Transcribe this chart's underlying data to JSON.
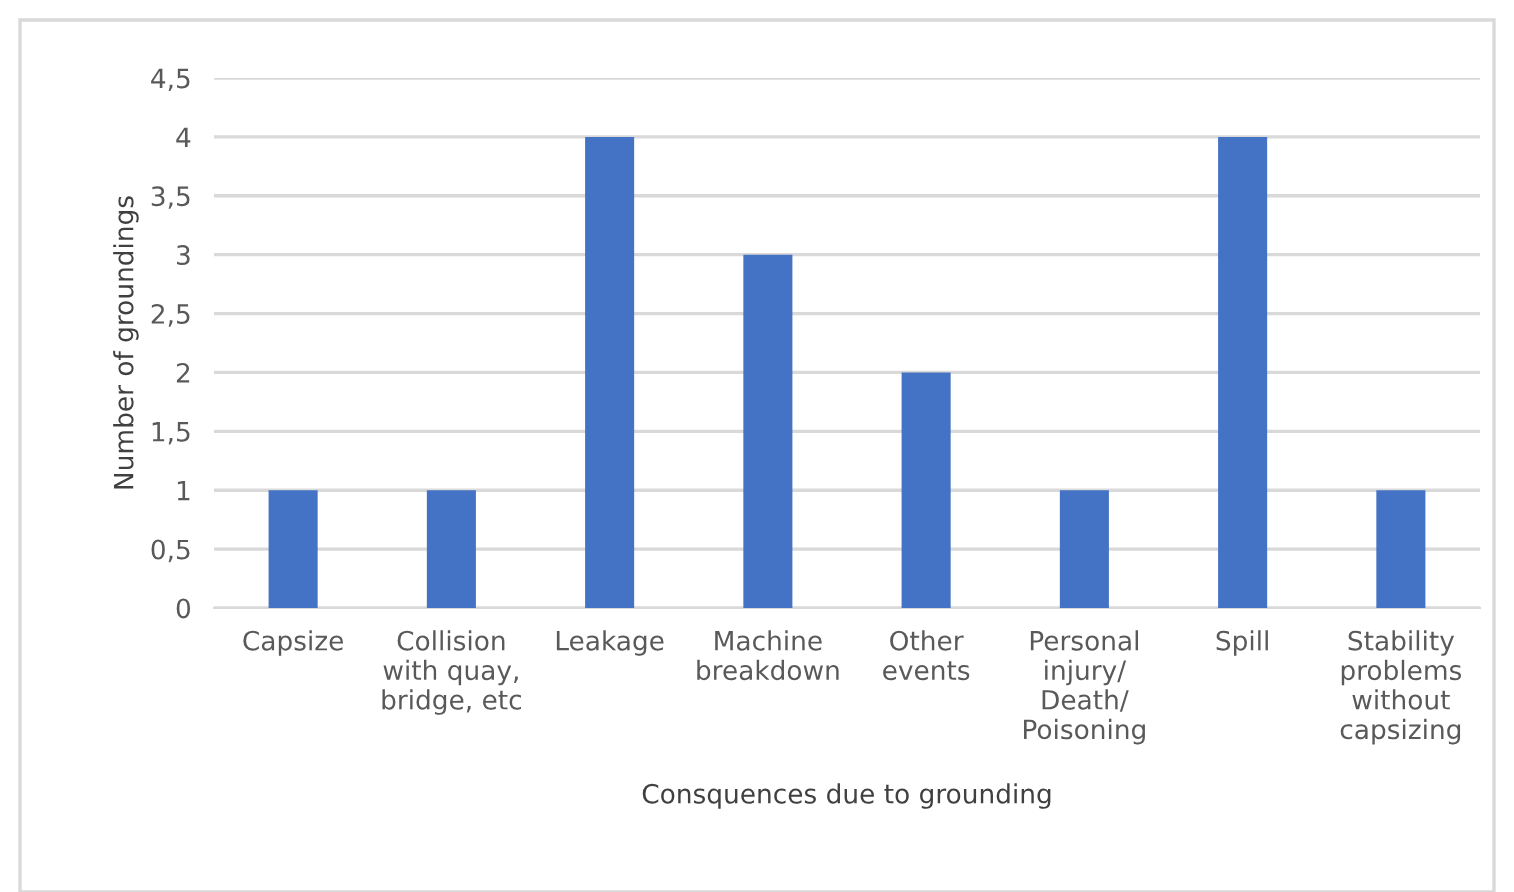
{
  "chart_data": {
    "type": "bar",
    "xlabel": "Consquences due to grounding",
    "ylabel": "Number of groundings",
    "categories": [
      "Capsize",
      "Collision\nwith quay,\nbridge, etc",
      "Leakage",
      "Machine\nbreakdown",
      "Other\nevents",
      "Personal\ninjury/\nDeath/\nPoisoning",
      "Spill",
      "Stability\nproblems\nwithout\ncapsizing"
    ],
    "values": [
      1,
      1,
      4,
      3,
      2,
      1,
      4,
      1
    ],
    "color": "#4472c4",
    "ylim": [
      0,
      4.5
    ],
    "yticks": [
      0,
      {
        "value": 0.5,
        "label": "0,5"
      },
      1,
      {
        "value": 1.5,
        "label": "1,5"
      },
      2,
      {
        "value": 2.5,
        "label": "2,5"
      },
      3,
      {
        "value": 3.5,
        "label": "3,5"
      },
      4,
      {
        "value": 4.5,
        "label": "4,5"
      }
    ],
    "grid": "y"
  }
}
